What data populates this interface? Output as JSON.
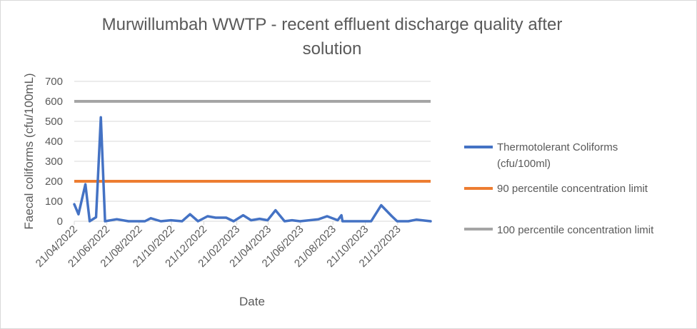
{
  "chart_data": {
    "type": "line",
    "title": "Murwillumbah WWTP - recent effluent discharge quality after solution",
    "title_lines": [
      "Murwillumbah WWTP - recent effluent discharge quality after",
      "solution"
    ],
    "xlabel": "Date",
    "ylabel": "Faecal coliforms (cfu/100mL)",
    "ylim": [
      0,
      700
    ],
    "yticks": [
      0,
      100,
      200,
      300,
      400,
      500,
      600,
      700
    ],
    "xlim": [
      "2022-04-21",
      "2024-02-21"
    ],
    "xticks": [
      "21/04/2022",
      "21/06/2022",
      "21/08/2022",
      "21/10/2022",
      "21/12/2022",
      "21/02/2023",
      "21/04/2023",
      "21/06/2023",
      "21/08/2023",
      "21/10/2023",
      "21/12/2023"
    ],
    "grid": "horizontal",
    "legend_position": "right",
    "series": [
      {
        "name": "Thermotolerant Coliforms (cfu/100ml)",
        "legend_lines": [
          "Thermotolerant Coliforms",
          "(cfu/100ml)"
        ],
        "color": "#4472c4",
        "points": [
          {
            "x": "2022-04-21",
            "y": 85
          },
          {
            "x": "2022-04-29",
            "y": 35
          },
          {
            "x": "2022-05-12",
            "y": 185
          },
          {
            "x": "2022-05-20",
            "y": 0
          },
          {
            "x": "2022-06-01",
            "y": 20
          },
          {
            "x": "2022-06-10",
            "y": 520
          },
          {
            "x": "2022-06-18",
            "y": 0
          },
          {
            "x": "2022-07-10",
            "y": 10
          },
          {
            "x": "2022-08-01",
            "y": 0
          },
          {
            "x": "2022-09-01",
            "y": 0
          },
          {
            "x": "2022-09-12",
            "y": 15
          },
          {
            "x": "2022-10-01",
            "y": 0
          },
          {
            "x": "2022-10-20",
            "y": 5
          },
          {
            "x": "2022-11-10",
            "y": 0
          },
          {
            "x": "2022-11-25",
            "y": 35
          },
          {
            "x": "2022-12-10",
            "y": 0
          },
          {
            "x": "2022-12-28",
            "y": 25
          },
          {
            "x": "2023-01-12",
            "y": 18
          },
          {
            "x": "2023-02-01",
            "y": 18
          },
          {
            "x": "2023-02-15",
            "y": 0
          },
          {
            "x": "2023-03-05",
            "y": 30
          },
          {
            "x": "2023-03-20",
            "y": 5
          },
          {
            "x": "2023-04-05",
            "y": 12
          },
          {
            "x": "2023-04-20",
            "y": 5
          },
          {
            "x": "2023-05-05",
            "y": 55
          },
          {
            "x": "2023-05-22",
            "y": 0
          },
          {
            "x": "2023-06-05",
            "y": 5
          },
          {
            "x": "2023-06-20",
            "y": 0
          },
          {
            "x": "2023-07-08",
            "y": 5
          },
          {
            "x": "2023-07-25",
            "y": 10
          },
          {
            "x": "2023-08-10",
            "y": 25
          },
          {
            "x": "2023-08-30",
            "y": 5
          },
          {
            "x": "2023-09-06",
            "y": 30
          },
          {
            "x": "2023-09-08",
            "y": 0
          },
          {
            "x": "2023-10-05",
            "y": 0
          },
          {
            "x": "2023-11-01",
            "y": 0
          },
          {
            "x": "2023-11-20",
            "y": 80
          },
          {
            "x": "2023-12-10",
            "y": 25
          },
          {
            "x": "2023-12-20",
            "y": 0
          },
          {
            "x": "2024-01-10",
            "y": 0
          },
          {
            "x": "2024-01-25",
            "y": 8
          },
          {
            "x": "2024-02-21",
            "y": 0
          }
        ]
      },
      {
        "name": "90 percentile concentration limit",
        "color": "#ed7d31",
        "constant": 200
      },
      {
        "name": "100 percentile concentration limit",
        "color": "#a5a5a5",
        "constant": 600
      }
    ]
  }
}
